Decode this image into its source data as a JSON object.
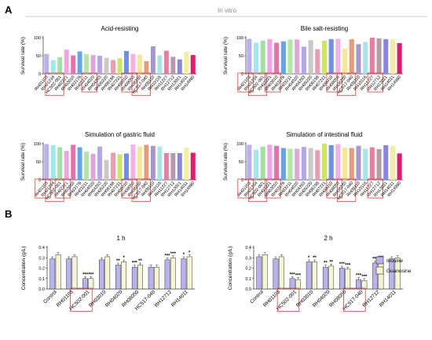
{
  "panel_a_label": "A",
  "panel_b_label": "B",
  "in_vitro_label": "In vitro",
  "panel_a_ylabel": "Survival rate (%)",
  "panel_b_ylabel": "Concentration (g/L)",
  "strains_a": [
    "RH01103",
    "RH01234",
    "HC502-001",
    "RH02221",
    "RH03010",
    "RH03176",
    "RH03211",
    "RH04020",
    "RH04203",
    "RH05220",
    "RH06198",
    "RH07231",
    "RH08010",
    "RH08050",
    "RH08230",
    "HC517-040",
    "RH09110",
    "RH10116",
    "RH11227",
    "RH12712",
    "RH13021",
    "RH14011",
    "RH14980"
  ],
  "bar_colors": [
    "#b8b2ee",
    "#9ee9ec",
    "#9fe3a4",
    "#f2a4e2",
    "#e86fb0",
    "#61a5ec",
    "#b4e8a2",
    "#e2a3dc",
    "#b4a6ec",
    "#c9c9c9",
    "#ef9ab3",
    "#cbe85e",
    "#6f8fe6",
    "#f3b0e5",
    "#f4e892",
    "#e79a7c",
    "#a598d2",
    "#a7e4ee",
    "#f07a9b",
    "#b59ba9",
    "#8986e3",
    "#f3ee9c",
    "#e8176c"
  ],
  "legend": {
    "inosine": "Inosine",
    "guanosine": "Guanosine"
  },
  "chart_data": [
    {
      "type": "bar",
      "title": "Acid-resisting",
      "ylabel": "Survival rate (%)",
      "ylim": [
        0,
        100
      ],
      "yticks": [
        0,
        50,
        100
      ],
      "categories": [
        "RH01103",
        "RH01234",
        "HC502-001",
        "RH02221",
        "RH03010",
        "RH03176",
        "RH03211",
        "RH04020",
        "RH04203",
        "RH05220",
        "RH06198",
        "RH07231",
        "RH08010",
        "RH08050",
        "RH08230",
        "HC517-040",
        "RH09110",
        "RH10116",
        "RH11227",
        "RH12712",
        "RH13021",
        "RH14011",
        "RH14980"
      ],
      "values": [
        55,
        38,
        46,
        67,
        51,
        62,
        55,
        52,
        50,
        44,
        38,
        43,
        63,
        55,
        53,
        35,
        76,
        51,
        64,
        47,
        40,
        61,
        52
      ],
      "highlighted": [
        "HC502-001",
        "RH04020",
        "RH08050",
        "HC517-040"
      ]
    },
    {
      "type": "bar",
      "title": "Bile salt-resisting",
      "ylabel": "Survival rate (%)",
      "ylim": [
        0,
        100
      ],
      "yticks": [
        0,
        50,
        100
      ],
      "categories": [
        "RH01103",
        "RH01234",
        "HC502-001",
        "RH02221",
        "RH03010",
        "RH03176",
        "RH03211",
        "RH04020",
        "RH04203",
        "RH05220",
        "RH06198",
        "RH07231",
        "RH08010",
        "RH08050",
        "RH08230",
        "HC517-040",
        "RH09110",
        "RH10116",
        "RH11227",
        "RH12712",
        "RH13021",
        "RH14011",
        "RH14980"
      ],
      "values": [
        97,
        86,
        92,
        96,
        86,
        90,
        95,
        95,
        75,
        93,
        68,
        92,
        96,
        97,
        70,
        96,
        82,
        88,
        100,
        98,
        96,
        96,
        85
      ],
      "highlighted": [
        "RH01103",
        "HC502-001",
        "RH03010",
        "RH08050",
        "HC517-040",
        "RH12712"
      ]
    },
    {
      "type": "bar",
      "title": "Simulation of gastric fluid",
      "ylabel": "Survival rate (%)",
      "ylim": [
        0,
        100
      ],
      "yticks": [
        0,
        50,
        100
      ],
      "categories": [
        "RH01103",
        "RH01234",
        "HC502-001",
        "RH02221",
        "RH03010",
        "RH03176",
        "RH03211",
        "RH04020",
        "RH04203",
        "RH05220",
        "RH06198",
        "RH07231",
        "RH08010",
        "RH08050",
        "RH08230",
        "HC517-040",
        "RH09110",
        "RH10116",
        "RH11227",
        "RH12712",
        "RH13021",
        "RH14011",
        "RH14980"
      ],
      "values": [
        99,
        96,
        90,
        80,
        97,
        90,
        78,
        72,
        92,
        55,
        75,
        71,
        73,
        98,
        92,
        97,
        94,
        92,
        74,
        74,
        74,
        89,
        75
      ],
      "highlighted": [
        "RH01103",
        "HC502-001",
        "RH02221",
        "RH08050",
        "HC517-040"
      ]
    },
    {
      "type": "bar",
      "title": "Simulation of intestinal fluid",
      "ylabel": "Survival rate (%)",
      "ylim": [
        0,
        100
      ],
      "yticks": [
        0,
        50,
        100
      ],
      "categories": [
        "RH01103",
        "RH01234",
        "HC502-001",
        "RH02221",
        "RH03010",
        "RH03176",
        "RH03211",
        "RH04020",
        "RH04203",
        "RH05220",
        "RH06198",
        "RH07231",
        "RH08010",
        "RH08050",
        "RH08230",
        "HC517-040",
        "RH09110",
        "RH10116",
        "RH11227",
        "RH12712",
        "RH13021",
        "RH14011",
        "RH14980"
      ],
      "values": [
        97,
        83,
        92,
        97,
        94,
        88,
        86,
        86,
        91,
        88,
        82,
        100,
        96,
        99,
        89,
        88,
        94,
        86,
        90,
        85,
        96,
        94,
        73
      ],
      "highlighted": [
        "RH01103",
        "HC502-001",
        "RH03010",
        "RH08050",
        "HC517-040",
        "RH12712"
      ]
    },
    {
      "type": "bar",
      "title": "1 h",
      "ylabel": "Concentration (g/L)",
      "ylim": [
        0,
        0.4
      ],
      "yticks": [
        0,
        0.1,
        0.2,
        0.3,
        0.4
      ],
      "categories": [
        "Control",
        "RH01103",
        "HC502-001",
        "RH03010",
        "RH04020",
        "RH08050",
        "HC517-040",
        "RH12712",
        "RH14011"
      ],
      "series": [
        {
          "name": "Inosine",
          "values": [
            0.29,
            0.29,
            0.1,
            0.28,
            0.23,
            0.21,
            0.21,
            0.28,
            0.29
          ]
        },
        {
          "name": "Guanosine",
          "values": [
            0.33,
            0.31,
            0.1,
            0.31,
            0.26,
            0.23,
            0.21,
            0.3,
            0.31
          ]
        }
      ],
      "significance": [
        [
          "",
          ""
        ],
        [
          "",
          ""
        ],
        [
          "***",
          "***"
        ],
        [
          "",
          ""
        ],
        [
          "**",
          "*"
        ],
        [
          "***",
          "**"
        ],
        [
          "",
          ""
        ],
        [
          "***",
          "***"
        ],
        [
          "*",
          "*"
        ]
      ],
      "highlighted": [
        "HC502-001"
      ]
    },
    {
      "type": "bar",
      "title": "2 h",
      "ylabel": "Concentration (g/L)",
      "ylim": [
        0,
        0.4
      ],
      "yticks": [
        0,
        0.1,
        0.2,
        0.3,
        0.4
      ],
      "categories": [
        "Control",
        "RH01103",
        "HC502-001",
        "RH03010",
        "RH04020",
        "RH08050",
        "HC517-040",
        "RH12712",
        "RH14011"
      ],
      "series": [
        {
          "name": "Inosine",
          "values": [
            0.31,
            0.29,
            0.1,
            0.26,
            0.21,
            0.2,
            0.09,
            0.25,
            0.29
          ]
        },
        {
          "name": "Guanosine",
          "values": [
            0.33,
            0.31,
            0.09,
            0.26,
            0.22,
            0.19,
            0.08,
            0.26,
            0.3
          ]
        }
      ],
      "significance": [
        [
          "",
          ""
        ],
        [
          "",
          ""
        ],
        [
          "***",
          "***"
        ],
        [
          "*",
          "**"
        ],
        [
          "**",
          "**"
        ],
        [
          "***",
          "***"
        ],
        [
          "***",
          "***"
        ],
        [
          "***",
          "***"
        ],
        [
          "",
          ""
        ]
      ],
      "highlighted": [
        "HC502-001",
        "HC517-040"
      ]
    }
  ]
}
